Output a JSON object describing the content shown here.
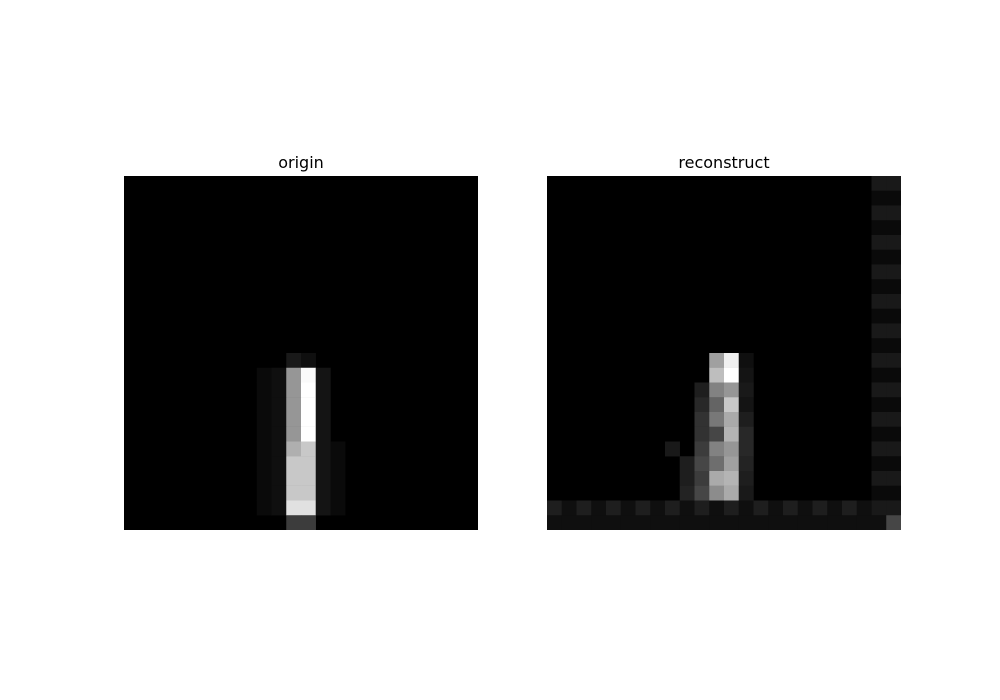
{
  "chart_data": [
    {
      "type": "heatmap",
      "title": "origin",
      "colormap": "gray",
      "value_range": [
        0,
        255
      ],
      "grid": false,
      "axes_visible": false,
      "rows": 24,
      "cols": 24,
      "cells": [
        [
          12,
          11,
          25
        ],
        [
          12,
          12,
          15
        ],
        [
          13,
          9,
          10
        ],
        [
          13,
          10,
          15
        ],
        [
          13,
          11,
          150
        ],
        [
          13,
          12,
          250
        ],
        [
          13,
          13,
          20
        ],
        [
          14,
          9,
          10
        ],
        [
          14,
          10,
          15
        ],
        [
          14,
          11,
          150
        ],
        [
          14,
          12,
          255
        ],
        [
          14,
          13,
          20
        ],
        [
          15,
          9,
          10
        ],
        [
          15,
          10,
          15
        ],
        [
          15,
          11,
          150
        ],
        [
          15,
          12,
          255
        ],
        [
          15,
          13,
          20
        ],
        [
          16,
          9,
          10
        ],
        [
          16,
          10,
          15
        ],
        [
          16,
          11,
          150
        ],
        [
          16,
          12,
          255
        ],
        [
          16,
          13,
          20
        ],
        [
          17,
          9,
          10
        ],
        [
          17,
          10,
          15
        ],
        [
          17,
          11,
          150
        ],
        [
          17,
          12,
          255
        ],
        [
          17,
          13,
          20
        ],
        [
          18,
          9,
          10
        ],
        [
          18,
          10,
          15
        ],
        [
          18,
          11,
          175
        ],
        [
          18,
          12,
          200
        ],
        [
          18,
          13,
          20
        ],
        [
          18,
          14,
          10
        ],
        [
          19,
          9,
          10
        ],
        [
          19,
          10,
          15
        ],
        [
          19,
          11,
          200
        ],
        [
          19,
          12,
          200
        ],
        [
          19,
          13,
          20
        ],
        [
          19,
          14,
          10
        ],
        [
          20,
          9,
          10
        ],
        [
          20,
          10,
          15
        ],
        [
          20,
          11,
          200
        ],
        [
          20,
          12,
          200
        ],
        [
          20,
          13,
          20
        ],
        [
          20,
          14,
          10
        ],
        [
          21,
          9,
          10
        ],
        [
          21,
          10,
          15
        ],
        [
          21,
          11,
          200
        ],
        [
          21,
          12,
          200
        ],
        [
          21,
          13,
          20
        ],
        [
          21,
          14,
          10
        ],
        [
          22,
          9,
          10
        ],
        [
          22,
          10,
          15
        ],
        [
          22,
          11,
          225
        ],
        [
          22,
          12,
          225
        ],
        [
          22,
          13,
          20
        ],
        [
          22,
          14,
          10
        ],
        [
          23,
          11,
          60
        ],
        [
          23,
          12,
          60
        ]
      ]
    },
    {
      "type": "heatmap",
      "title": "reconstruct",
      "colormap": "gray",
      "value_range": [
        0,
        255
      ],
      "grid": false,
      "axes_visible": false,
      "rows": 24,
      "cols": 24,
      "cells": [
        [
          0,
          22,
          25
        ],
        [
          0,
          23,
          25
        ],
        [
          1,
          22,
          10
        ],
        [
          1,
          23,
          10
        ],
        [
          2,
          22,
          25
        ],
        [
          2,
          23,
          25
        ],
        [
          3,
          22,
          10
        ],
        [
          3,
          23,
          10
        ],
        [
          4,
          22,
          25
        ],
        [
          4,
          23,
          25
        ],
        [
          5,
          22,
          10
        ],
        [
          5,
          23,
          10
        ],
        [
          6,
          22,
          25
        ],
        [
          6,
          23,
          25
        ],
        [
          7,
          22,
          10
        ],
        [
          7,
          23,
          10
        ],
        [
          8,
          22,
          25
        ],
        [
          8,
          23,
          25
        ],
        [
          9,
          22,
          10
        ],
        [
          9,
          23,
          10
        ],
        [
          10,
          22,
          25
        ],
        [
          10,
          23,
          25
        ],
        [
          11,
          22,
          10
        ],
        [
          11,
          23,
          10
        ],
        [
          12,
          22,
          25
        ],
        [
          12,
          23,
          25
        ],
        [
          13,
          22,
          10
        ],
        [
          13,
          23,
          10
        ],
        [
          14,
          22,
          25
        ],
        [
          14,
          23,
          25
        ],
        [
          15,
          22,
          10
        ],
        [
          15,
          23,
          10
        ],
        [
          16,
          22,
          25
        ],
        [
          16,
          23,
          25
        ],
        [
          17,
          22,
          10
        ],
        [
          17,
          23,
          10
        ],
        [
          18,
          22,
          25
        ],
        [
          18,
          23,
          25
        ],
        [
          19,
          22,
          10
        ],
        [
          19,
          23,
          10
        ],
        [
          20,
          22,
          25
        ],
        [
          20,
          23,
          25
        ],
        [
          21,
          22,
          10
        ],
        [
          21,
          23,
          10
        ],
        [
          22,
          22,
          25
        ],
        [
          22,
          23,
          25
        ],
        [
          12,
          11,
          160
        ],
        [
          12,
          12,
          240
        ],
        [
          12,
          13,
          15
        ],
        [
          13,
          11,
          190
        ],
        [
          13,
          12,
          255
        ],
        [
          13,
          13,
          20
        ],
        [
          14,
          10,
          30
        ],
        [
          14,
          11,
          130
        ],
        [
          14,
          12,
          150
        ],
        [
          14,
          13,
          25
        ],
        [
          15,
          10,
          40
        ],
        [
          15,
          11,
          100
        ],
        [
          15,
          12,
          200
        ],
        [
          15,
          13,
          20
        ],
        [
          16,
          10,
          50
        ],
        [
          16,
          11,
          120
        ],
        [
          16,
          12,
          170
        ],
        [
          16,
          13,
          30
        ],
        [
          17,
          10,
          50
        ],
        [
          17,
          11,
          70
        ],
        [
          17,
          12,
          180
        ],
        [
          17,
          13,
          40
        ],
        [
          18,
          8,
          25
        ],
        [
          18,
          10,
          60
        ],
        [
          18,
          11,
          130
        ],
        [
          18,
          12,
          150
        ],
        [
          18,
          13,
          40
        ],
        [
          19,
          9,
          30
        ],
        [
          19,
          10,
          70
        ],
        [
          19,
          11,
          110
        ],
        [
          19,
          12,
          160
        ],
        [
          19,
          13,
          35
        ],
        [
          20,
          9,
          30
        ],
        [
          20,
          10,
          60
        ],
        [
          20,
          11,
          170
        ],
        [
          20,
          12,
          180
        ],
        [
          20,
          13,
          30
        ],
        [
          21,
          9,
          35
        ],
        [
          21,
          10,
          70
        ],
        [
          21,
          11,
          140
        ],
        [
          21,
          12,
          170
        ],
        [
          21,
          13,
          25
        ],
        [
          22,
          0,
          30
        ],
        [
          22,
          1,
          15
        ],
        [
          22,
          2,
          30
        ],
        [
          22,
          3,
          15
        ],
        [
          22,
          4,
          30
        ],
        [
          22,
          5,
          15
        ],
        [
          22,
          6,
          30
        ],
        [
          22,
          7,
          15
        ],
        [
          22,
          8,
          30
        ],
        [
          22,
          9,
          15
        ],
        [
          22,
          10,
          30
        ],
        [
          22,
          11,
          15
        ],
        [
          22,
          12,
          30
        ],
        [
          22,
          13,
          15
        ],
        [
          22,
          14,
          30
        ],
        [
          22,
          15,
          15
        ],
        [
          22,
          16,
          30
        ],
        [
          22,
          17,
          15
        ],
        [
          22,
          18,
          30
        ],
        [
          22,
          19,
          15
        ],
        [
          22,
          20,
          30
        ],
        [
          22,
          21,
          15
        ],
        [
          23,
          0,
          15
        ],
        [
          23,
          1,
          15
        ],
        [
          23,
          2,
          15
        ],
        [
          23,
          3,
          15
        ],
        [
          23,
          4,
          15
        ],
        [
          23,
          5,
          15
        ],
        [
          23,
          6,
          15
        ],
        [
          23,
          7,
          15
        ],
        [
          23,
          8,
          15
        ],
        [
          23,
          9,
          15
        ],
        [
          23,
          10,
          15
        ],
        [
          23,
          11,
          15
        ],
        [
          23,
          12,
          15
        ],
        [
          23,
          13,
          15
        ],
        [
          23,
          14,
          15
        ],
        [
          23,
          15,
          15
        ],
        [
          23,
          16,
          15
        ],
        [
          23,
          17,
          15
        ],
        [
          23,
          18,
          15
        ],
        [
          23,
          19,
          15
        ],
        [
          23,
          20,
          15
        ],
        [
          23,
          21,
          15
        ],
        [
          23,
          22,
          15
        ],
        [
          23,
          23,
          70
        ]
      ]
    }
  ]
}
